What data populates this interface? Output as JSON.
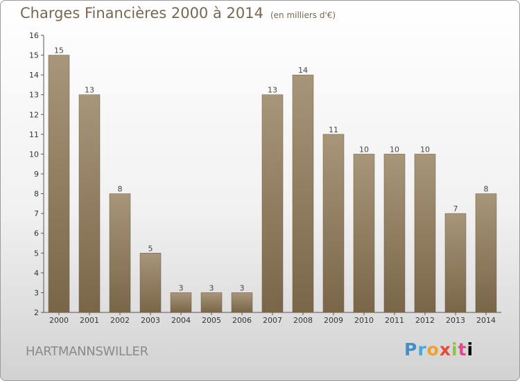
{
  "title": "Charges Financières 2000 à 2014",
  "subtitle": "(en milliers d'€)",
  "city": "HARTMANNSWILLER",
  "logo": [
    "P",
    "r",
    "o",
    "x",
    "i",
    "t",
    "i"
  ],
  "colors": {
    "bar_top": "#a8967a",
    "bar_bottom": "#7a6548",
    "title": "#7a6650"
  },
  "chart_data": {
    "type": "bar",
    "categories": [
      "2000",
      "2001",
      "2002",
      "2003",
      "2004",
      "2005",
      "2006",
      "2007",
      "2008",
      "2009",
      "2010",
      "2011",
      "2012",
      "2013",
      "2014"
    ],
    "values": [
      15,
      13,
      8,
      5,
      3,
      3,
      3,
      13,
      14,
      11,
      10,
      10,
      10,
      7,
      8
    ],
    "data_labels": [
      "15",
      "13",
      "8",
      "5",
      "3",
      "3",
      "3",
      "13",
      "14",
      "11",
      "10",
      "10",
      "10",
      "7",
      "8"
    ],
    "ylim": [
      2,
      16
    ],
    "yticks": [
      2,
      3,
      4,
      5,
      6,
      7,
      8,
      9,
      10,
      11,
      12,
      13,
      14,
      15,
      16
    ],
    "grid": false,
    "xlabel": "",
    "ylabel": ""
  }
}
